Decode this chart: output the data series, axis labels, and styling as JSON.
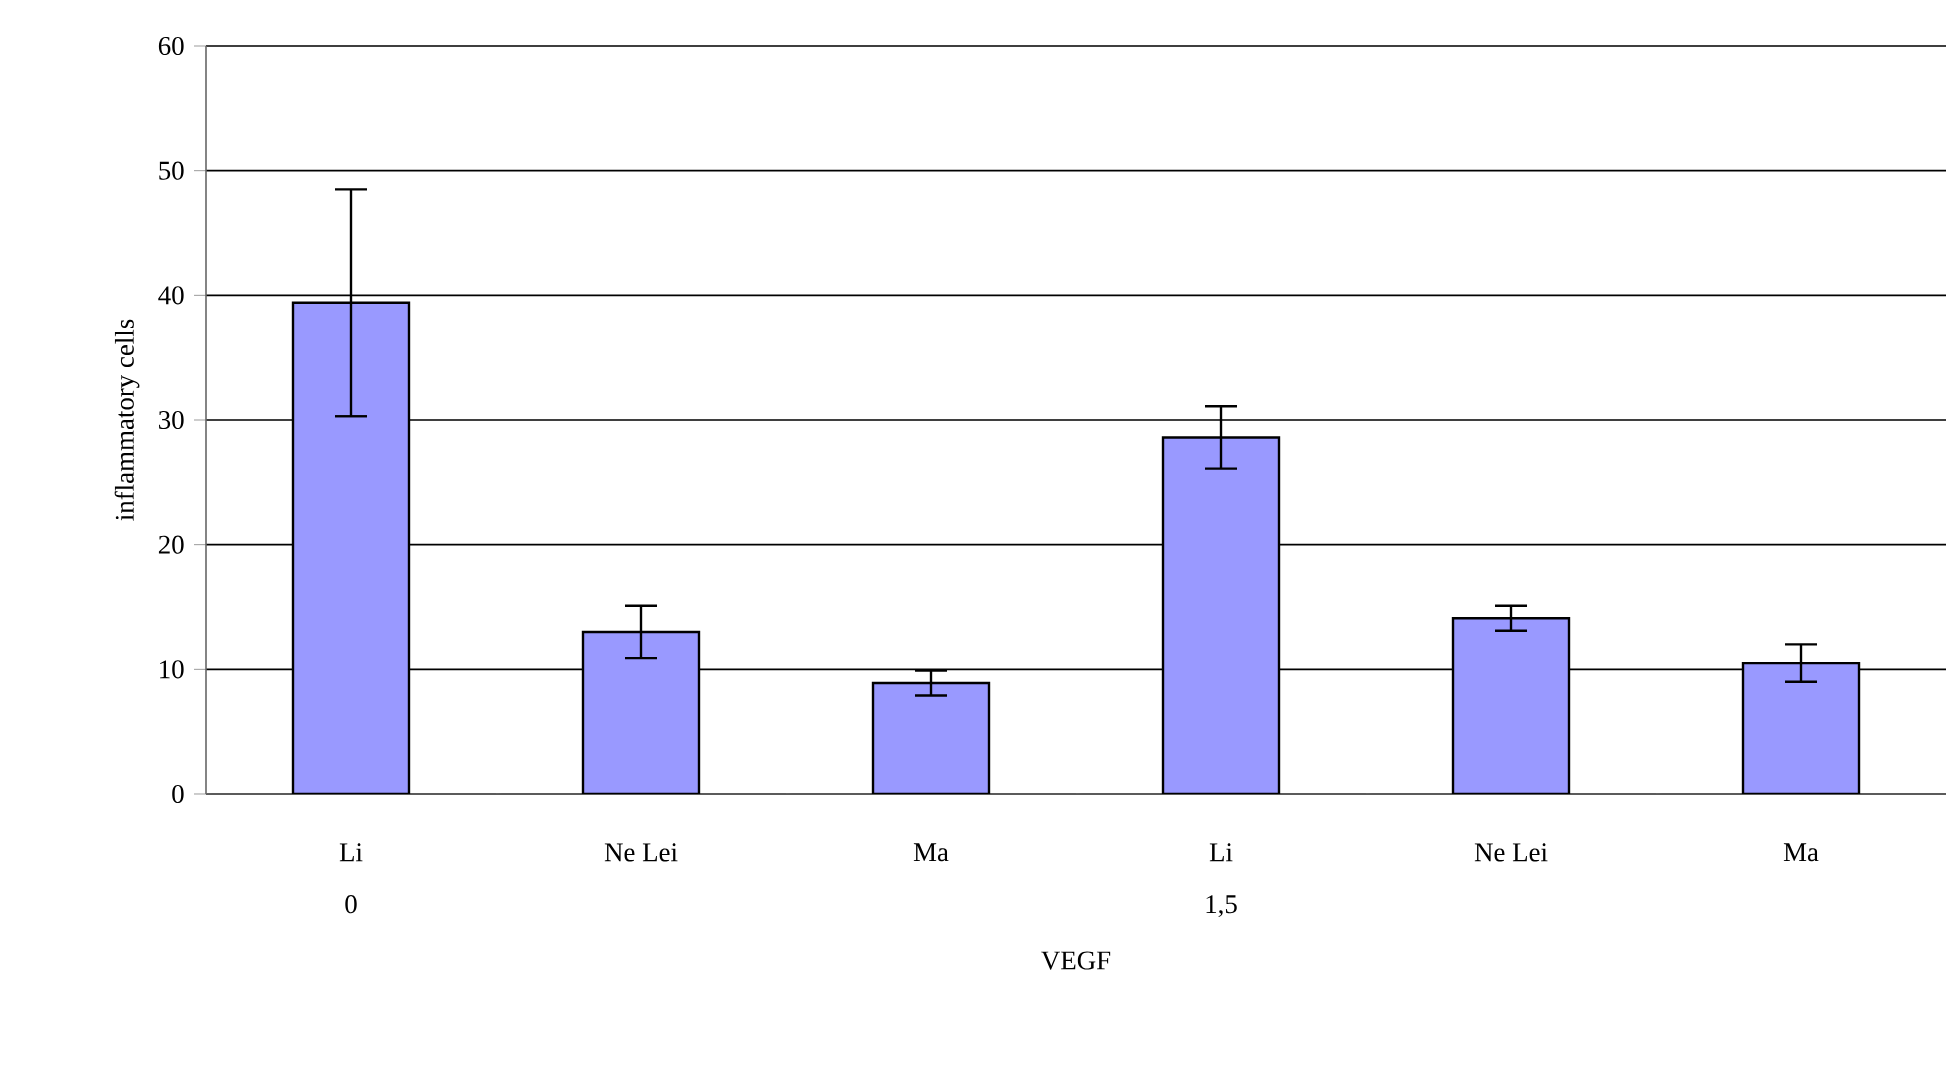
{
  "chart_data": {
    "type": "bar",
    "xlabel": "VEGF",
    "ylabel": "inflammatory cells",
    "categories": [
      "Li\n0",
      "Ne Lei",
      "Ma",
      "Li\n1,5",
      "Ne Lei",
      "Ma"
    ],
    "values": [
      39.4,
      13.0,
      8.9,
      28.6,
      14.1,
      10.5
    ],
    "errors": [
      9.1,
      2.1,
      1.0,
      2.5,
      1.0,
      1.5
    ],
    "color": "#9999ff",
    "ylim": [
      0,
      60
    ],
    "yticks": [
      0,
      10,
      20,
      30,
      40,
      50,
      60
    ],
    "grid": "y"
  }
}
